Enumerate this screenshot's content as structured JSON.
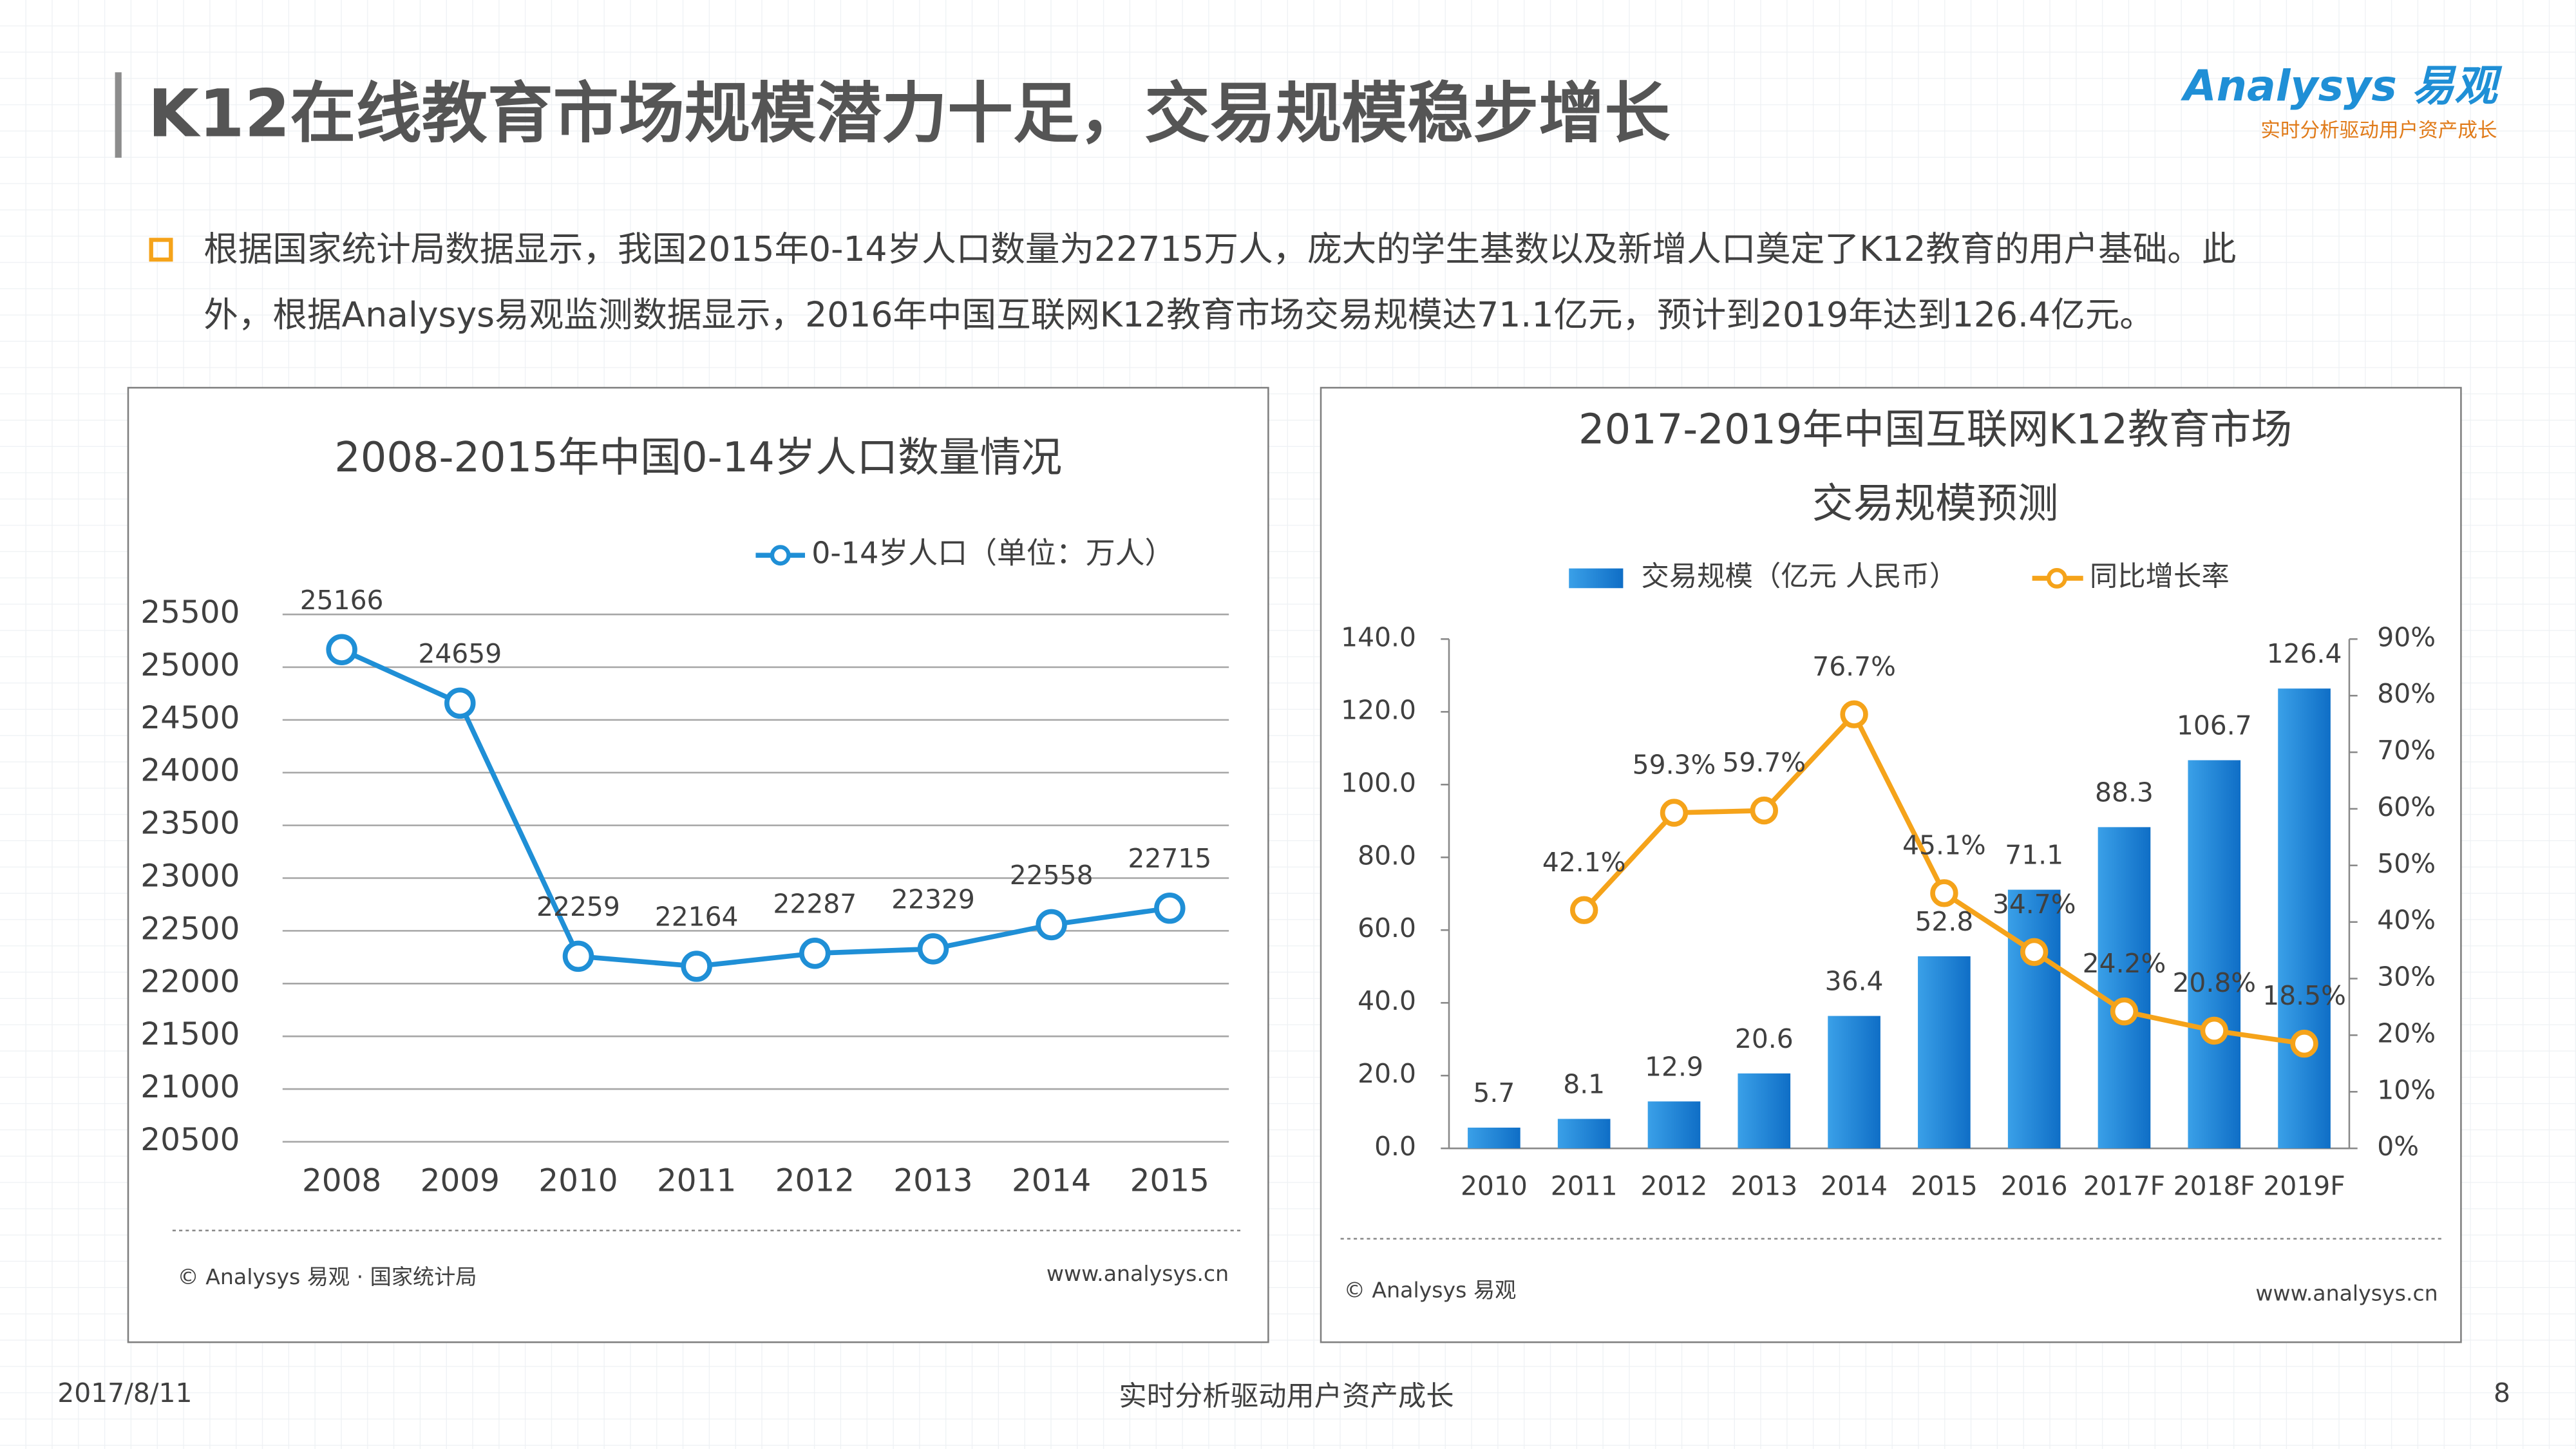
{
  "header": {
    "title": "K12在线教育市场规模潜力十足，交易规模稳步增长",
    "logo": "Analysys 易观",
    "tagline": "实时分析驱动用户资产成长"
  },
  "bullet": [
    "根据国家统计局数据显示，我国2015年0-14岁人口数量为22715万人，庞大的学生基数以及新增人口奠定了K12教育的用户基础。此",
    "外，根据Analysys易观监测数据显示，2016年中国互联网K12教育市场交易规模达71.1亿元，预计到2019年达到126.4亿元。"
  ],
  "chart_data": [
    {
      "type": "line",
      "title": "2008-2015年中国0-14岁人口数量情况",
      "categories": [
        "2008",
        "2009",
        "2010",
        "2011",
        "2012",
        "2013",
        "2014",
        "2015"
      ],
      "series": [
        {
          "name": "0-14岁人口（单位：万人）",
          "color": "#1f8fd6",
          "values": [
            25166,
            24659,
            22259,
            22164,
            22287,
            22329,
            22558,
            22715
          ]
        }
      ],
      "ylim": [
        20500,
        25500
      ],
      "yticks": [
        20500,
        21000,
        21500,
        22000,
        22500,
        23000,
        23500,
        24000,
        24500,
        25000,
        25500
      ],
      "grid": true,
      "source": "© Analysys 易观 · 国家统计局",
      "website": "www.analysys.cn"
    },
    {
      "type": "bar-line",
      "title": [
        "2017-2019年中国互联网K12教育市场",
        "交易规模预测"
      ],
      "categories": [
        "2010",
        "2011",
        "2012",
        "2013",
        "2014",
        "2015",
        "2016",
        "2017F",
        "2018F",
        "2019F"
      ],
      "series": [
        {
          "name": "交易规模（亿元 人民币）",
          "color": "#1a7fd4",
          "values": [
            5.7,
            8.1,
            12.9,
            20.6,
            36.4,
            52.8,
            71.1,
            88.3,
            106.7,
            126.4
          ]
        },
        {
          "name": "同比增长率",
          "color": "#f5a31a",
          "axis": "y2",
          "values": [
            null,
            42.1,
            59.3,
            59.7,
            76.7,
            45.1,
            34.7,
            24.2,
            20.8,
            18.5
          ],
          "value_labels": [
            null,
            "42.1%",
            "59.3%",
            "59.7%",
            "76.7%",
            "45.1%",
            "34.7%",
            "24.2%",
            "20.8%",
            "18.5%"
          ]
        }
      ],
      "ylim": [
        0,
        140
      ],
      "yticks": [
        {
          "value": 0,
          "label": "0.0"
        },
        {
          "value": 20,
          "label": "20.0"
        },
        {
          "value": 40,
          "label": "40.0"
        },
        {
          "value": 60,
          "label": "60.0"
        },
        {
          "value": 80,
          "label": "80.0"
        },
        {
          "value": 100,
          "label": "100.0"
        },
        {
          "value": 120,
          "label": "120.0"
        },
        {
          "value": 140,
          "label": "140.0"
        }
      ],
      "y2lim": [
        0,
        90
      ],
      "y2ticks": [
        {
          "value": 0,
          "label": "0%"
        },
        {
          "value": 10,
          "label": "10%"
        },
        {
          "value": 20,
          "label": "20%"
        },
        {
          "value": 30,
          "label": "30%"
        },
        {
          "value": 40,
          "label": "40%"
        },
        {
          "value": 50,
          "label": "50%"
        },
        {
          "value": 60,
          "label": "60%"
        },
        {
          "value": 70,
          "label": "70%"
        },
        {
          "value": 80,
          "label": "80%"
        },
        {
          "value": 90,
          "label": "90%"
        }
      ],
      "source": "© Analysys 易观",
      "website": "www.analysys.cn"
    }
  ],
  "footer": {
    "date": "2017/8/11",
    "slogan": "实时分析驱动用户资产成长",
    "page": "8"
  }
}
